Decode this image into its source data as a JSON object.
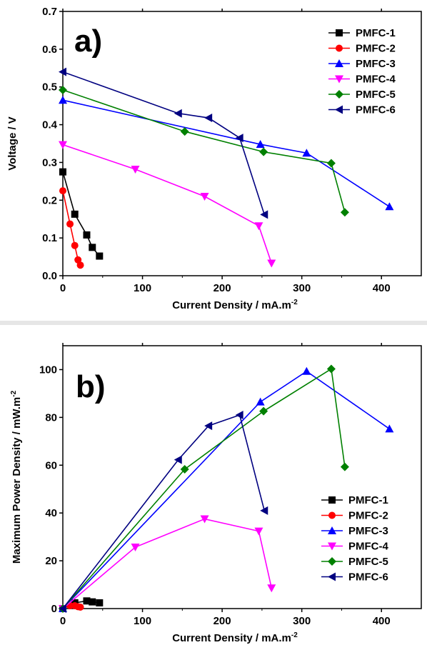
{
  "chart_data": [
    {
      "type": "line",
      "panel_label": "a)",
      "xlabel": "Current Density / mA.m",
      "xlabel_sup": "-2",
      "ylabel": "Voltage / V",
      "xlim": [
        0,
        450
      ],
      "ylim": [
        0,
        0.7
      ],
      "xticks": [
        "0",
        "100",
        "200",
        "300",
        "400"
      ],
      "yticks": [
        "0.0",
        "0.1",
        "0.2",
        "0.3",
        "0.4",
        "0.5",
        "0.6",
        "0.7"
      ],
      "xtick_values": [
        0,
        100,
        200,
        300,
        400
      ],
      "ytick_values": [
        0,
        0.1,
        0.2,
        0.3,
        0.4,
        0.5,
        0.6,
        0.7
      ],
      "legend_position": "top-right",
      "series": [
        {
          "name": "PMFC-1",
          "color": "#000000",
          "marker": "square",
          "x": [
            0,
            15,
            30,
            37,
            46
          ],
          "y": [
            0.275,
            0.163,
            0.108,
            0.075,
            0.052
          ]
        },
        {
          "name": "PMFC-2",
          "color": "#ff0000",
          "marker": "circle",
          "x": [
            0,
            9,
            15,
            19,
            22
          ],
          "y": [
            0.225,
            0.137,
            0.08,
            0.042,
            0.028
          ]
        },
        {
          "name": "PMFC-3",
          "color": "#0000ff",
          "marker": "triangle-up",
          "x": [
            0,
            248,
            306,
            410
          ],
          "y": [
            0.465,
            0.348,
            0.325,
            0.183
          ]
        },
        {
          "name": "PMFC-4",
          "color": "#ff00ff",
          "marker": "triangle-down",
          "x": [
            0,
            91,
            178,
            246,
            262
          ],
          "y": [
            0.347,
            0.282,
            0.21,
            0.132,
            0.033
          ]
        },
        {
          "name": "PMFC-5",
          "color": "#008000",
          "marker": "diamond",
          "x": [
            0,
            153,
            252,
            337,
            354
          ],
          "y": [
            0.492,
            0.382,
            0.328,
            0.298,
            0.168
          ]
        },
        {
          "name": "PMFC-6",
          "color": "#000080",
          "marker": "triangle-left",
          "x": [
            0,
            145,
            183,
            222,
            253
          ],
          "y": [
            0.54,
            0.43,
            0.418,
            0.365,
            0.162
          ]
        }
      ]
    },
    {
      "type": "line",
      "panel_label": "b)",
      "xlabel": "Current Density / mA.m",
      "xlabel_sup": "-2",
      "ylabel": "Maximum Power Density / mW.m",
      "ylabel_sup": "-2",
      "xlim": [
        0,
        450
      ],
      "ylim": [
        0,
        110
      ],
      "xticks": [
        "0",
        "100",
        "200",
        "300",
        "400"
      ],
      "yticks": [
        "0",
        "20",
        "40",
        "60",
        "80",
        "100"
      ],
      "xtick_values": [
        0,
        100,
        200,
        300,
        400
      ],
      "ytick_values": [
        0,
        20,
        40,
        60,
        80,
        100
      ],
      "legend_position": "bottom-right",
      "series": [
        {
          "name": "PMFC-1",
          "color": "#000000",
          "marker": "square",
          "x": [
            0,
            15,
            30,
            37,
            46
          ],
          "y": [
            0,
            2.4,
            3.2,
            2.8,
            2.4
          ]
        },
        {
          "name": "PMFC-2",
          "color": "#ff0000",
          "marker": "circle",
          "x": [
            0,
            9,
            15,
            19,
            22
          ],
          "y": [
            0,
            1.2,
            1.2,
            0.8,
            0.6
          ]
        },
        {
          "name": "PMFC-3",
          "color": "#0000ff",
          "marker": "triangle-up",
          "x": [
            0,
            248,
            306,
            410
          ],
          "y": [
            0,
            86.5,
            99.3,
            75.2
          ]
        },
        {
          "name": "PMFC-4",
          "color": "#ff00ff",
          "marker": "triangle-down",
          "x": [
            0,
            91,
            178,
            246,
            262
          ],
          "y": [
            0,
            25.7,
            37.5,
            32.4,
            8.6
          ]
        },
        {
          "name": "PMFC-5",
          "color": "#008000",
          "marker": "diamond",
          "x": [
            0,
            153,
            252,
            337,
            354
          ],
          "y": [
            0,
            58.3,
            82.6,
            100.3,
            59.3
          ]
        },
        {
          "name": "PMFC-6",
          "color": "#000080",
          "marker": "triangle-left",
          "x": [
            0,
            145,
            183,
            222,
            253
          ],
          "y": [
            0,
            62.3,
            76.5,
            81.0,
            41.0
          ]
        }
      ]
    }
  ]
}
